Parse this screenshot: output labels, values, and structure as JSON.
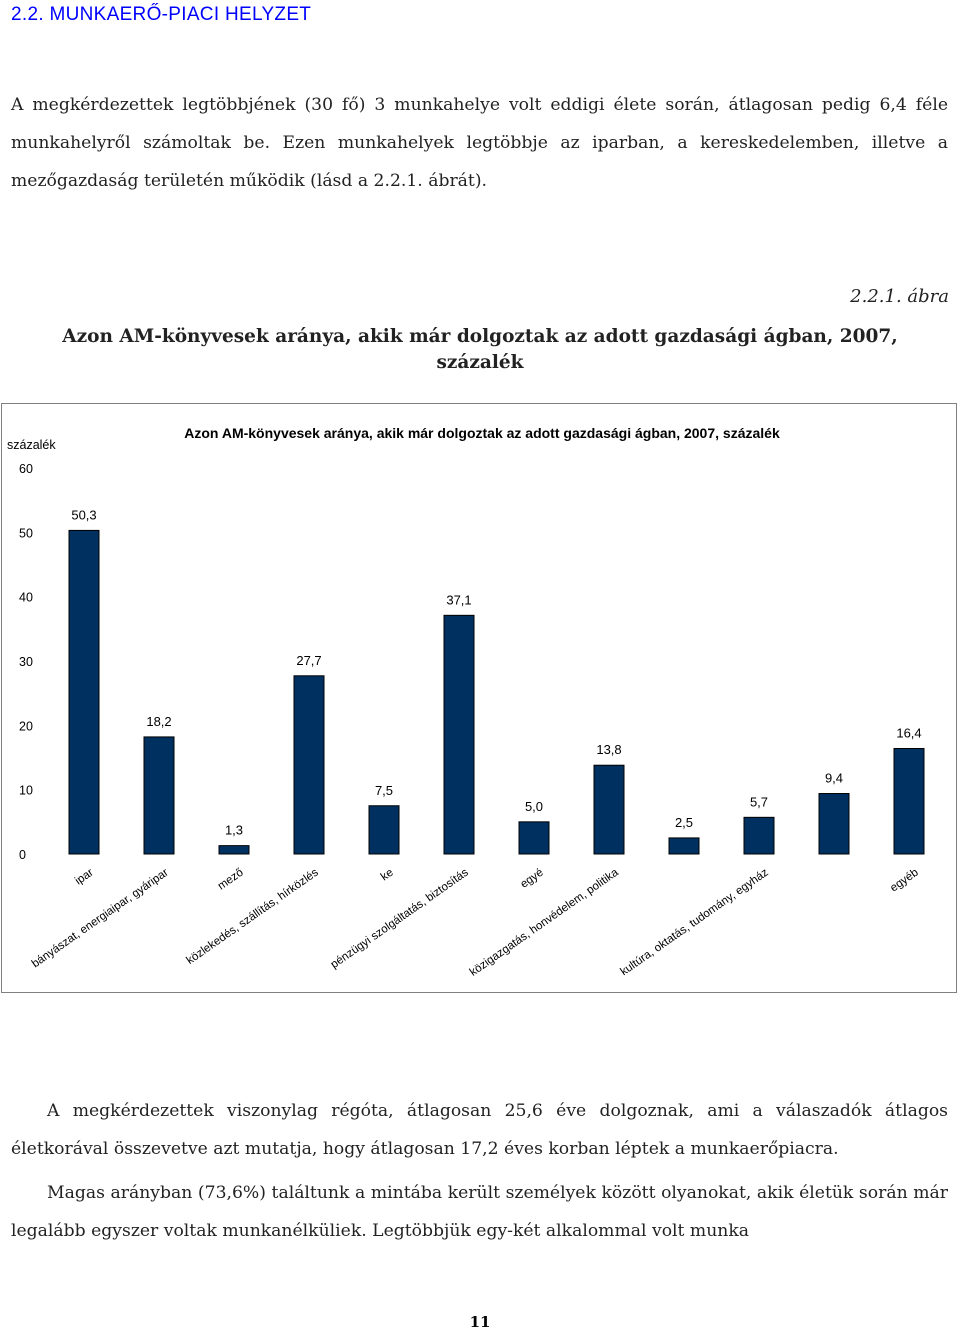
{
  "document": {
    "section_heading": "2.2. MUNKAERŐ-PIACI HELYZET",
    "paragraph_1": "A megkérdezettek legtöbbjének (30 fő) 3 munkahelye volt eddigi élete során, átlagosan pedig 6,4 féle munkahelyről számoltak be. Ezen munkahelyek legtöbbje az iparban, a kereskedelemben, illetve a mezőgazdaság területén működik (lásd a 2.2.1. ábrát).",
    "figure_ref": "2.2.1. ábra",
    "figure_title": "Azon AM-könyvesek aránya, akik már dolgoztak az adott gazdasági ágban, 2007, százalék",
    "paragraph_2": "A megkérdezettek viszonylag régóta, átlagosan 25,6 éve dolgoznak, ami a válaszadók átlagos életkorával összevetve azt mutatja, hogy átlagosan 17,2 éves korban léptek a munkaerőpiacra.",
    "paragraph_3": "Magas arányban (73,6%) találtunk a mintába került személyek között olyanokat, akik életük során már legalább egyszer voltak munkanélküliek. Legtöbbjük egy-két alkalommal volt munka",
    "page_number": "11"
  },
  "colors": {
    "heading": "#0000ff",
    "bar_fill": "#00305f"
  },
  "chart_data": {
    "type": "bar",
    "title": "Azon AM-könyvesek aránya, akik már dolgoztak az adott gazdasági ágban, 2007, százalék",
    "ylabel": "százalék",
    "xlabel": "",
    "ylim": [
      0,
      60
    ],
    "yticks": [
      0,
      10,
      20,
      30,
      40,
      50,
      60
    ],
    "grid": false,
    "legend": "none",
    "categories": [
      "ipar",
      "bányászat, energiaipar, gyáripar",
      "mező",
      "közlekedés, szállítás, hírközlés",
      "ke",
      "pénzügyi szolgáltatás, biztosítás",
      "egyé",
      "közigazgatás, honvédelem, politika",
      "",
      "kultúra, oktatás, tudomány, egyház",
      "",
      "egyéb"
    ],
    "values": [
      50.3,
      18.2,
      1.3,
      27.7,
      7.5,
      37.1,
      5.0,
      13.8,
      2.5,
      5.7,
      9.4,
      16.4
    ],
    "value_labels": [
      "50,3",
      "18,2",
      "1,3",
      "27,7",
      "7,5",
      "37,1",
      "5,0",
      "13,8",
      "2,5",
      "5,7",
      "9,4",
      "16,4"
    ]
  }
}
